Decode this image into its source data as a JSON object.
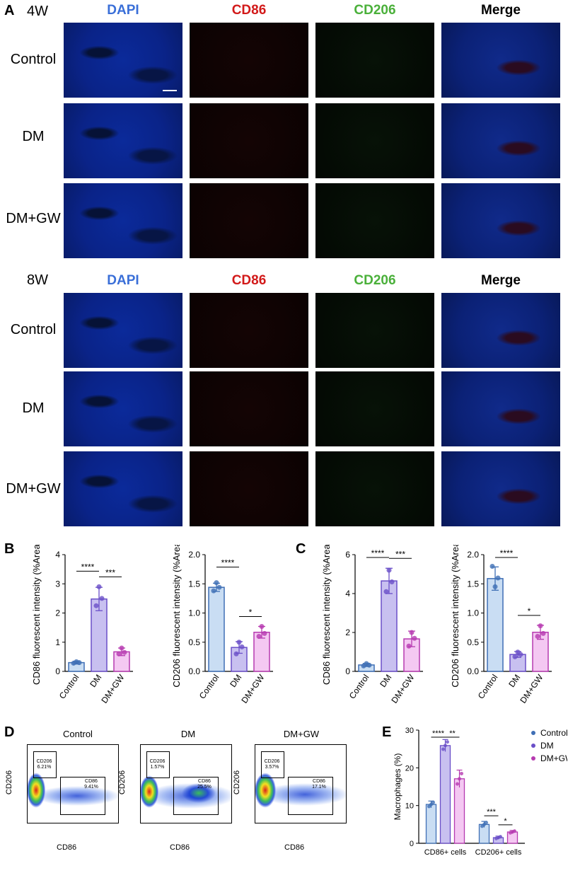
{
  "panelA": {
    "letter": "A",
    "weeks": [
      "4W",
      "8W"
    ],
    "columns": [
      "DAPI",
      "CD86",
      "CD206",
      "Merge"
    ],
    "column_colors": [
      "#3a6fd8",
      "#d21a1a",
      "#4ab03a",
      "#000000"
    ],
    "rows": [
      "Control",
      "DM",
      "DM+GW"
    ]
  },
  "panelB": {
    "letter": "B"
  },
  "panelC": {
    "letter": "C"
  },
  "panelD": {
    "letter": "D",
    "xlabel": "CD86",
    "ylabel": "CD206",
    "plots": [
      {
        "title": "Control",
        "cd206_gate": "CD206\n6.21%",
        "cd86_gate": "CD86\n9.41%"
      },
      {
        "title": "DM",
        "cd206_gate": "CD206\n1.57%",
        "cd86_gate": "CD86\n25.5%"
      },
      {
        "title": "DM+GW",
        "cd206_gate": "CD206\n3.57%",
        "cd86_gate": "CD86\n17.1%"
      }
    ]
  },
  "panelE": {
    "letter": "E"
  },
  "colors": {
    "control_fill": "#c9ddf3",
    "control_edge": "#3f6fb5",
    "dm_fill": "#c8c0f0",
    "dm_edge": "#6a4fc8",
    "gw_fill": "#f4c8f2",
    "gw_edge": "#b63ab0"
  },
  "chart_data": [
    {
      "id": "B1",
      "type": "bar",
      "categories": [
        "Control",
        "DM",
        "DM+GW"
      ],
      "values": [
        0.3,
        2.48,
        0.67
      ],
      "errors": [
        0.05,
        0.4,
        0.13
      ],
      "points": [
        [
          0.28,
          0.33,
          0.3
        ],
        [
          2.25,
          2.9,
          2.5
        ],
        [
          0.6,
          0.8,
          0.65
        ]
      ],
      "ylabel": "CD86 fluorescent intensity (%Area)",
      "ylim": [
        0,
        4
      ],
      "yticks": [
        0,
        1,
        2,
        3,
        4
      ],
      "significance": [
        {
          "from": 0,
          "to": 1,
          "label": "****"
        },
        {
          "from": 1,
          "to": 2,
          "label": "***"
        }
      ]
    },
    {
      "id": "B2",
      "type": "bar",
      "categories": [
        "Control",
        "DM",
        "DM+GW"
      ],
      "values": [
        1.44,
        0.41,
        0.67
      ],
      "errors": [
        0.07,
        0.1,
        0.1
      ],
      "points": [
        [
          1.38,
          1.52,
          1.44
        ],
        [
          0.3,
          0.5,
          0.42
        ],
        [
          0.6,
          0.77,
          0.65
        ]
      ],
      "ylabel": "CD206 fluorescent intensity (%Area)",
      "ylim": [
        0,
        2.0
      ],
      "yticks": [
        "0.0",
        "0.5",
        "1.0",
        "1.5",
        "2.0"
      ],
      "significance": [
        {
          "from": 0,
          "to": 1,
          "label": "****"
        },
        {
          "from": 1,
          "to": 2,
          "label": "*"
        }
      ]
    },
    {
      "id": "C1",
      "type": "bar",
      "categories": [
        "Control",
        "DM",
        "DM+GW"
      ],
      "values": [
        0.33,
        4.65,
        1.67
      ],
      "errors": [
        0.08,
        0.65,
        0.4
      ],
      "points": [
        [
          0.28,
          0.4,
          0.32
        ],
        [
          4.1,
          5.2,
          4.6
        ],
        [
          1.3,
          2.0,
          1.7
        ]
      ],
      "ylabel": "CD86 fluorescent intensity (%Area)",
      "ylim": [
        0,
        6
      ],
      "yticks": [
        0,
        2,
        4,
        6
      ],
      "significance": [
        {
          "from": 0,
          "to": 1,
          "label": "****"
        },
        {
          "from": 1,
          "to": 2,
          "label": "***"
        }
      ]
    },
    {
      "id": "C2",
      "type": "bar",
      "categories": [
        "Control",
        "DM",
        "DM+GW"
      ],
      "values": [
        1.59,
        0.29,
        0.67
      ],
      "errors": [
        0.2,
        0.05,
        0.12
      ],
      "points": [
        [
          1.8,
          1.45,
          1.6
        ],
        [
          0.25,
          0.33,
          0.29
        ],
        [
          0.6,
          0.78,
          0.65
        ]
      ],
      "ylabel": "CD206 fluorescent intensity (%Area)",
      "ylim": [
        0,
        2.0
      ],
      "yticks": [
        "0.0",
        "0.5",
        "1.0",
        "1.5",
        "2.0"
      ],
      "significance": [
        {
          "from": 0,
          "to": 1,
          "label": "****"
        },
        {
          "from": 1,
          "to": 2,
          "label": "*"
        }
      ]
    },
    {
      "id": "E",
      "type": "bar",
      "categories": [
        "CD86+ cells",
        "CD206+ cells"
      ],
      "series": [
        {
          "name": "Control",
          "values": [
            10.3,
            5.0
          ],
          "errors": [
            0.9,
            0.8
          ]
        },
        {
          "name": "DM",
          "values": [
            25.9,
            1.5
          ],
          "errors": [
            1.6,
            0.4
          ]
        },
        {
          "name": "DM+GW",
          "values": [
            17.1,
            3.0
          ],
          "errors": [
            2.3,
            0.4
          ]
        }
      ],
      "ylabel": "Macrophages (%)",
      "ylim": [
        0,
        30
      ],
      "yticks": [
        0,
        10,
        20,
        30
      ],
      "significance": [
        {
          "group": 0,
          "from": 0,
          "to": 1,
          "label": "****"
        },
        {
          "group": 0,
          "from": 1,
          "to": 2,
          "label": "**"
        },
        {
          "group": 1,
          "from": 0,
          "to": 1,
          "label": "***"
        },
        {
          "group": 1,
          "from": 1,
          "to": 2,
          "label": "*"
        }
      ],
      "legend": "top-right"
    }
  ]
}
